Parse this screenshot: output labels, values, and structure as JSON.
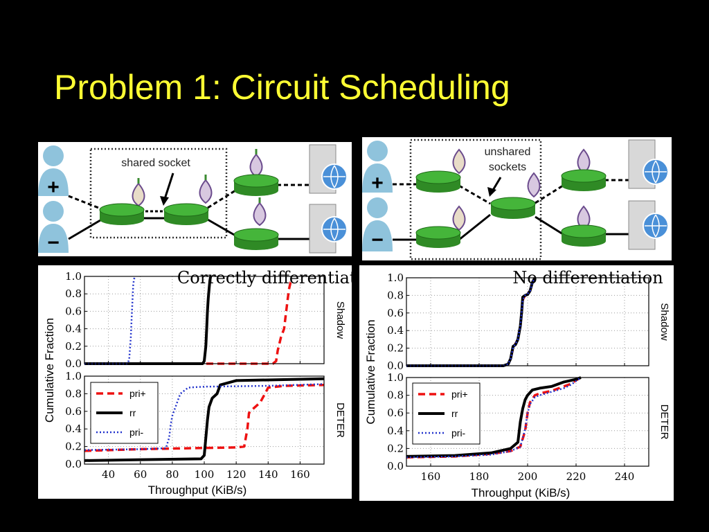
{
  "slide": {
    "title": "Problem 1: Circuit Scheduling"
  },
  "diagrams": [
    {
      "label_line1": "shared socket",
      "label_line2": "",
      "user_top_symbol": "+",
      "user_bottom_symbol": "−"
    },
    {
      "label_line1": "unshared",
      "label_line2": "sockets",
      "user_top_symbol": "+",
      "user_bottom_symbol": "−"
    }
  ],
  "colors": {
    "title": "#ffff33",
    "pri_plus": "#ee1111",
    "rr": "#000000",
    "pri_minus": "#2233cc",
    "relay_green": "#45b53a",
    "user_blue": "#8fc3dc",
    "onion_purple": "#6a4a8c"
  },
  "chart_data": [
    {
      "type": "line",
      "title": "Correctly differentiated",
      "xlabel": "Throughput (KiB/s)",
      "ylabel": "Cumulative Fraction",
      "x_ticks": [
        "40",
        "60",
        "80",
        "100",
        "120",
        "140",
        "160"
      ],
      "x_tick_values": [
        40,
        60,
        80,
        100,
        120,
        140,
        160
      ],
      "xlim": [
        25,
        175
      ],
      "grid": true,
      "legend_position": "upper-left of bottom subplot",
      "legend": [
        "pri+",
        "rr",
        "pri-"
      ],
      "subplots": [
        {
          "label": "Shadow",
          "y_ticks": [
            "0.0",
            "0.2",
            "0.4",
            "0.6",
            "0.8",
            "1.0"
          ],
          "ylim": [
            0,
            1
          ],
          "series": [
            {
              "name": "pri+",
              "style": "dashed",
              "x": [
                25,
                143,
                145,
                146,
                148,
                150,
                151,
                152,
                153,
                154,
                156
              ],
              "y": [
                0,
                0,
                0.03,
                0.15,
                0.3,
                0.4,
                0.55,
                0.7,
                0.85,
                0.93,
                0.95
              ]
            },
            {
              "name": "rr",
              "style": "solid",
              "x": [
                25,
                99,
                100,
                101,
                101.5,
                102,
                102.5,
                103,
                103.5,
                104
              ],
              "y": [
                0,
                0,
                0.03,
                0.2,
                0.4,
                0.6,
                0.75,
                0.85,
                0.95,
                1.0
              ]
            },
            {
              "name": "pri-",
              "style": "dotted",
              "x": [
                25,
                52,
                53,
                54,
                54.5,
                55,
                55.5,
                56,
                57
              ],
              "y": [
                0,
                0,
                0.05,
                0.3,
                0.5,
                0.7,
                0.9,
                0.97,
                1.0
              ]
            }
          ]
        },
        {
          "label": "DETER",
          "y_ticks": [
            "0.0",
            "0.2",
            "0.4",
            "0.6",
            "0.8",
            "1.0"
          ],
          "ylim": [
            0,
            1
          ],
          "series": [
            {
              "name": "pri+",
              "style": "dashed",
              "x": [
                25,
                60,
                90,
                120,
                125,
                127,
                128,
                130,
                135,
                138,
                140,
                150,
                175
              ],
              "y": [
                0.15,
                0.17,
                0.18,
                0.19,
                0.2,
                0.4,
                0.58,
                0.62,
                0.7,
                0.8,
                0.87,
                0.89,
                0.9
              ]
            },
            {
              "name": "rr",
              "style": "solid",
              "x": [
                25,
                60,
                98,
                100,
                101,
                102,
                103,
                105,
                108,
                110,
                120,
                175
              ],
              "y": [
                0.04,
                0.05,
                0.06,
                0.1,
                0.3,
                0.5,
                0.65,
                0.75,
                0.8,
                0.9,
                0.95,
                0.97
              ]
            },
            {
              "name": "pri-",
              "style": "dotted",
              "x": [
                25,
                60,
                76,
                78,
                79,
                80,
                82,
                85,
                90,
                100,
                140,
                175
              ],
              "y": [
                0.16,
                0.17,
                0.18,
                0.3,
                0.45,
                0.55,
                0.65,
                0.8,
                0.87,
                0.88,
                0.89,
                0.91
              ]
            }
          ]
        }
      ]
    },
    {
      "type": "line",
      "title": "No differentiation",
      "xlabel": "Throughput (KiB/s)",
      "ylabel": "Cumulative Fraction",
      "x_ticks": [
        "160",
        "180",
        "200",
        "220",
        "240"
      ],
      "x_tick_values": [
        160,
        180,
        200,
        220,
        240
      ],
      "xlim": [
        150,
        250
      ],
      "grid": true,
      "legend_position": "upper-left of bottom subplot",
      "legend": [
        "pri+",
        "rr",
        "pri-"
      ],
      "subplots": [
        {
          "label": "Shadow",
          "y_ticks": [
            "0.0",
            "0.2",
            "0.4",
            "0.6",
            "0.8",
            "1.0"
          ],
          "ylim": [
            0,
            1
          ],
          "series": [
            {
              "name": "pri+",
              "style": "dashed",
              "x": [
                150,
                190,
                192,
                193,
                194,
                195,
                196,
                197,
                197.5,
                198,
                199,
                200,
                201,
                202,
                203
              ],
              "y": [
                0,
                0,
                0.02,
                0.08,
                0.2,
                0.25,
                0.3,
                0.45,
                0.6,
                0.75,
                0.8,
                0.82,
                0.85,
                0.95,
                1.0
              ]
            },
            {
              "name": "rr",
              "style": "solid",
              "x": [
                150,
                190,
                192,
                193,
                194,
                195,
                196,
                197,
                197.5,
                198,
                199,
                200,
                201,
                202,
                203
              ],
              "y": [
                0,
                0,
                0.02,
                0.08,
                0.22,
                0.24,
                0.3,
                0.45,
                0.6,
                0.78,
                0.8,
                0.81,
                0.85,
                0.95,
                1.0
              ]
            },
            {
              "name": "pri-",
              "style": "dotted",
              "x": [
                150,
                190,
                192,
                193,
                194,
                195,
                196,
                197,
                197.5,
                198,
                199,
                200,
                201,
                202,
                203
              ],
              "y": [
                0,
                0,
                0.02,
                0.08,
                0.2,
                0.25,
                0.3,
                0.45,
                0.6,
                0.75,
                0.8,
                0.82,
                0.85,
                0.95,
                1.0
              ]
            }
          ]
        },
        {
          "label": "DETER",
          "y_ticks": [
            "0.0",
            "0.2",
            "0.4",
            "0.6",
            "0.8",
            "1.0"
          ],
          "ylim": [
            0,
            1
          ],
          "series": [
            {
              "name": "pri+",
              "style": "dashed",
              "x": [
                150,
                170,
                185,
                193,
                197,
                199,
                200,
                201,
                203,
                205,
                210,
                215,
                218,
                220,
                222
              ],
              "y": [
                0.1,
                0.11,
                0.14,
                0.17,
                0.22,
                0.4,
                0.6,
                0.72,
                0.8,
                0.82,
                0.85,
                0.9,
                0.93,
                0.97,
                1.0
              ]
            },
            {
              "name": "rr",
              "style": "solid",
              "x": [
                150,
                170,
                185,
                193,
                196,
                197,
                198,
                199,
                200,
                202,
                205,
                210,
                215,
                220,
                222
              ],
              "y": [
                0.11,
                0.12,
                0.15,
                0.2,
                0.27,
                0.5,
                0.65,
                0.75,
                0.8,
                0.86,
                0.88,
                0.9,
                0.95,
                0.98,
                1.0
              ]
            },
            {
              "name": "pri-",
              "style": "dotted",
              "x": [
                150,
                170,
                185,
                193,
                197,
                199,
                200,
                201,
                203,
                205,
                210,
                215,
                218,
                220,
                222
              ],
              "y": [
                0.1,
                0.11,
                0.13,
                0.17,
                0.22,
                0.42,
                0.6,
                0.7,
                0.78,
                0.8,
                0.84,
                0.88,
                0.92,
                0.96,
                1.0
              ]
            }
          ]
        }
      ]
    }
  ]
}
